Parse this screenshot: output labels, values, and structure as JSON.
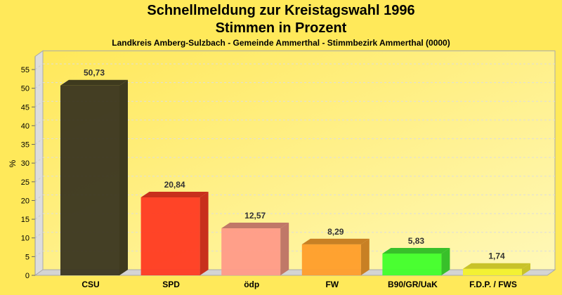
{
  "chart_data": {
    "type": "bar",
    "title": "Schnellmeldung zur Kreistagswahl 1996",
    "subtitle": "Stimmen in Prozent",
    "subsubtitle": "Landkreis Amberg-Sulzbach - Gemeinde Ammerthal - Stimmbezirk Ammerthal (0000)",
    "xlabel": "",
    "ylabel": "%",
    "ylim": [
      0,
      55
    ],
    "yticks": [
      0,
      5,
      10,
      15,
      20,
      25,
      30,
      35,
      40,
      45,
      50,
      55
    ],
    "grid": true,
    "categories": [
      "CSU",
      "SPD",
      "ödp",
      "FW",
      "B90/GR/UaK",
      "F.D.P. / FWS"
    ],
    "values": [
      50.73,
      20.84,
      12.57,
      8.29,
      5.83,
      1.74
    ],
    "value_labels": [
      "50,73",
      "20,84",
      "12,57",
      "8,29",
      "5,83",
      "1,74"
    ],
    "colors": [
      "#3a3520",
      "#ff3a22",
      "#ff9a88",
      "#ff9d2a",
      "#40ff2a",
      "#f4f22a"
    ],
    "side_colors": [
      "#3e3a1e",
      "#c8301c",
      "#c07868",
      "#c88024",
      "#38c02a",
      "#c8c22a"
    ]
  }
}
